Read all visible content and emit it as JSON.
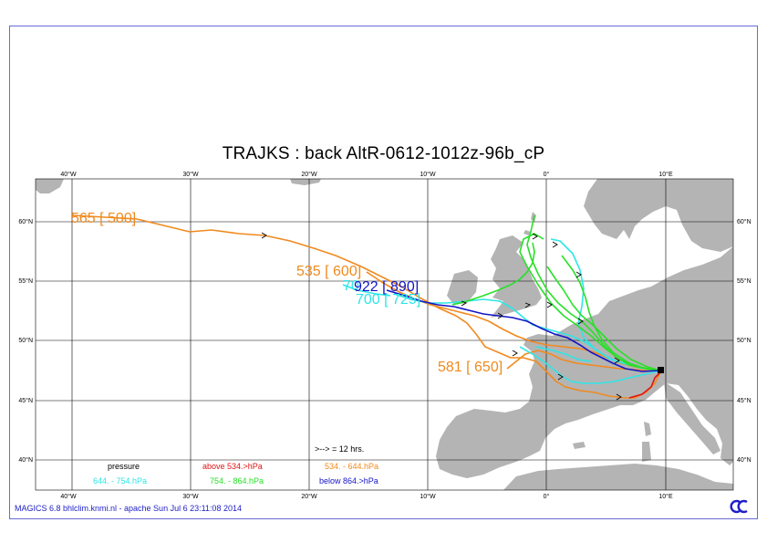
{
  "title": "TRAJKS : back AltR-0612-1012z-96b_cP",
  "footer": "MAGICS 6.8 bhlclim.knmi.nl - apache Sun Jul  6 23:11:08 2014",
  "axes": {
    "lon_labels_top": [
      "40°W",
      "30°W",
      "20°W",
      "10°W",
      "0°",
      "10°E"
    ],
    "lon_labels_bottom": [
      "40°W",
      "30°W",
      "20°W",
      "10°W",
      "0°",
      "10°E"
    ],
    "lat_labels_left": [
      "60°N",
      "55°N",
      "50°N",
      "45°N",
      "40°N"
    ],
    "lat_labels_right": [
      "60°N",
      "55°N",
      "50°N",
      "45°N",
      "40°N"
    ]
  },
  "trajectory_labels": {
    "t565": "565 [ 500]",
    "t535": "535 [ 600]",
    "t922": "922 [ 890]",
    "t700": "700 [ 725]",
    "t7x": "70",
    "t581": "581 [ 650]"
  },
  "legend": {
    "interval": ">-->  = 12 hrs.",
    "pressure": "pressure",
    "above": "above   534.>hPa",
    "orange": "534.  -    644.hPa",
    "cyan": "644.  -    754.hPa",
    "green": "754.  -    864.hPa",
    "below": "below   864.>hPa"
  },
  "colors": {
    "orange": "#f08a1e",
    "cyan": "#2ee6e6",
    "green": "#28e028",
    "blue": "#1414c8",
    "red": "#e01414",
    "land": "#b4b4b4",
    "frame": "#6b6bd6"
  },
  "icons": {
    "logo": "ecmwf-logo-icon",
    "start-point": "square-marker-icon"
  }
}
